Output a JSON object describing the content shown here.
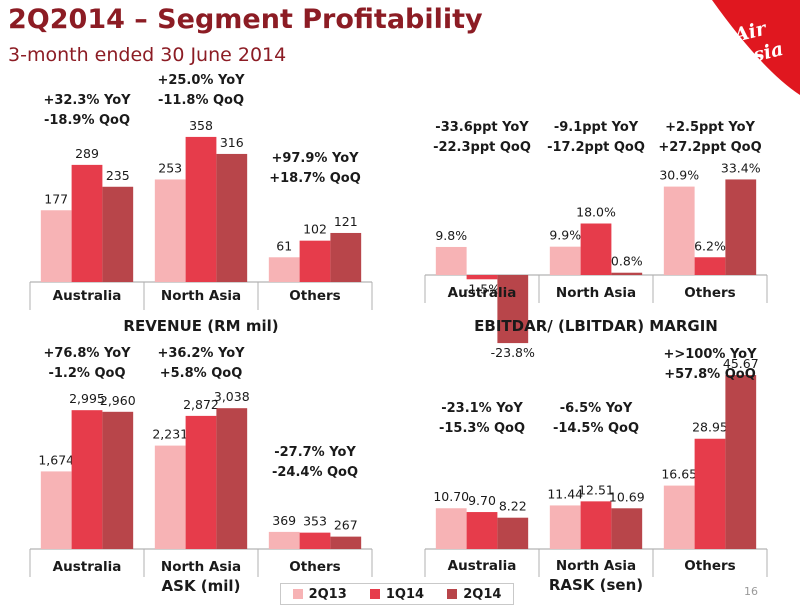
{
  "header": {
    "title": "2Q2014 – Segment Profitability",
    "subtitle": "3-month ended 30 June 2014"
  },
  "logo": {
    "text": "AirAsia",
    "bg": "#e0171f"
  },
  "legend": {
    "items": [
      "2Q13",
      "1Q14",
      "2Q14"
    ]
  },
  "colors": {
    "2Q13": "#f7b3b5",
    "1Q14": "#e63c4b",
    "2Q14": "#b8454a",
    "title": "#8c1c24"
  },
  "page_number": "16",
  "chart_data": [
    {
      "type": "bar",
      "title": "REVENUE (RM mil)",
      "categories": [
        "Australia",
        "North Asia",
        "Others"
      ],
      "series": [
        {
          "name": "2Q13",
          "values": [
            177,
            253,
            61
          ]
        },
        {
          "name": "1Q14",
          "values": [
            289,
            358,
            102
          ]
        },
        {
          "name": "2Q14",
          "values": [
            235,
            316,
            121
          ]
        }
      ],
      "labels": [
        [
          "177",
          "289",
          "235"
        ],
        [
          "253",
          "358",
          "316"
        ],
        [
          "61",
          "102",
          "121"
        ]
      ],
      "annotations": [
        [
          "+32.3% YoY",
          "-18.9% QoQ"
        ],
        [
          "+25.0% YoY",
          "-11.8% QoQ"
        ],
        [
          "+97.9% YoY",
          "+18.7% QoQ"
        ]
      ],
      "ylim": [
        0,
        380
      ]
    },
    {
      "type": "bar",
      "title": "EBITDAR/ (LBITDAR) MARGIN",
      "categories": [
        "Australia",
        "North Asia",
        "Others"
      ],
      "series": [
        {
          "name": "2Q13",
          "values": [
            9.8,
            9.9,
            30.9
          ]
        },
        {
          "name": "1Q14",
          "values": [
            -1.5,
            18.0,
            6.2
          ]
        },
        {
          "name": "2Q14",
          "values": [
            -23.8,
            0.8,
            33.4
          ]
        }
      ],
      "labels": [
        [
          "9.8%",
          "-1.5%",
          "-23.8%"
        ],
        [
          "9.9%",
          "18.0%",
          "0.8%"
        ],
        [
          "30.9%",
          "6.2%",
          "33.4%"
        ]
      ],
      "annotations": [
        [
          "-33.6ppt YoY",
          "-22.3ppt QoQ"
        ],
        [
          "-9.1ppt YoY",
          "-17.2ppt QoQ"
        ],
        [
          "+2.5ppt YoY",
          "+27.2ppt QoQ"
        ]
      ],
      "ylim": [
        -25,
        36
      ]
    },
    {
      "type": "bar",
      "title": "ASK (mil)",
      "categories": [
        "Australia",
        "North Asia",
        "Others"
      ],
      "series": [
        {
          "name": "2Q13",
          "values": [
            1674,
            2231,
            369
          ]
        },
        {
          "name": "1Q14",
          "values": [
            2995,
            2872,
            353
          ]
        },
        {
          "name": "2Q14",
          "values": [
            2960,
            3038,
            267
          ]
        }
      ],
      "labels": [
        [
          "1,674",
          "2,995",
          "2,960"
        ],
        [
          "2,231",
          "2,872",
          "3,038"
        ],
        [
          "369",
          "353",
          "267"
        ]
      ],
      "annotations": [
        [
          "+76.8% YoY",
          "-1.2% QoQ"
        ],
        [
          "+36.2% YoY",
          "+5.8% QoQ"
        ],
        [
          "-27.7% YoY",
          "-24.4% QoQ"
        ]
      ],
      "ylim": [
        0,
        3150
      ]
    },
    {
      "type": "bar",
      "title": "RASK (sen)",
      "categories": [
        "Australia",
        "North Asia",
        "Others"
      ],
      "series": [
        {
          "name": "2Q13",
          "values": [
            10.7,
            11.44,
            16.65
          ]
        },
        {
          "name": "1Q14",
          "values": [
            9.7,
            12.51,
            28.95
          ]
        },
        {
          "name": "2Q14",
          "values": [
            8.22,
            10.69,
            45.67
          ]
        }
      ],
      "labels": [
        [
          "10.70",
          "9.70",
          "8.22"
        ],
        [
          "11.44",
          "12.51",
          "10.69"
        ],
        [
          "16.65",
          "28.95",
          "45.67"
        ]
      ],
      "annotations": [
        [
          "-23.1% YoY",
          "-15.3% QoQ"
        ],
        [
          "-6.5% YoY",
          "-14.5% QoQ"
        ],
        [
          "+>100% YoY",
          "+57.8% QoQ"
        ]
      ],
      "ylim": [
        0,
        47
      ]
    }
  ]
}
